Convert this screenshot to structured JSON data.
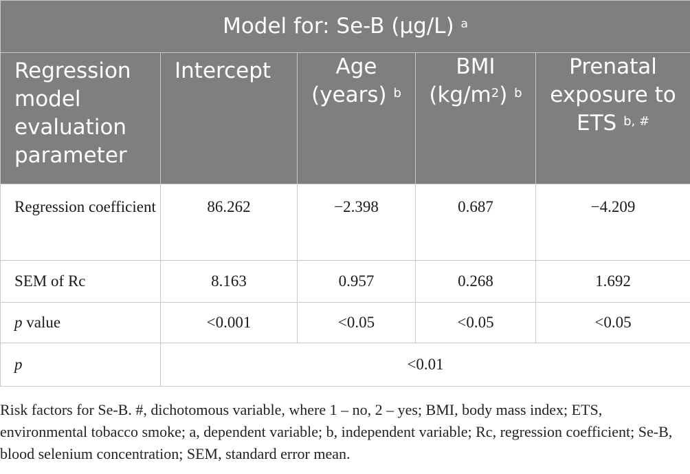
{
  "table": {
    "title": "Model for: Se-B (µg/L)",
    "title_sup": "a",
    "col_first": "Regression model evaluation parameter",
    "col_intercept": "Intercept",
    "col_age": "Age (years)",
    "col_age_sup": "b",
    "col_bmi_pre": "BMI (kg/m",
    "col_bmi_exp": "2",
    "col_bmi_post": ")",
    "col_bmi_sup": "b",
    "col_ets": "Prenatal exposure to ETS",
    "col_ets_sup": "b, #",
    "rows": [
      {
        "label": "Regression coefficient",
        "intercept": "86.262",
        "age": "−2.398",
        "bmi": "0.687",
        "ets": "−4.209"
      },
      {
        "label": "SEM of Rc",
        "intercept": "8.163",
        "age": "0.957",
        "bmi": "0.268",
        "ets": "1.692"
      },
      {
        "label_italic": "p",
        "label_rest": " value",
        "intercept": "<0.001",
        "age": "<0.05",
        "bmi": "<0.05",
        "ets": "<0.05"
      }
    ],
    "last_row": {
      "label_italic": "p",
      "value": "<0.01"
    }
  },
  "footnote": "Risk factors for Se-B. #, dichotomous variable, where 1 – no, 2 – yes; BMI, body mass index; ETS, environmental tobacco smoke; a, dependent variable; b, independent variable; Rc, regression coefficient; Se-B, blood selenium concentration; SEM, standard error mean."
}
